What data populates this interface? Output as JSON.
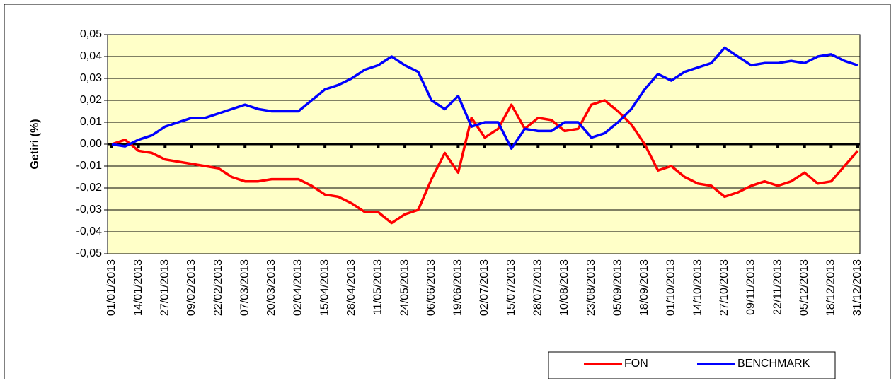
{
  "chart_data": {
    "type": "line",
    "ylabel": "Getiri (%)",
    "categories": [
      "01/01/2013",
      null,
      "14/01/2013",
      null,
      "27/01/2013",
      null,
      "09/02/2013",
      null,
      "22/02/2013",
      null,
      "07/03/2013",
      null,
      "20/03/2013",
      null,
      "02/04/2013",
      null,
      "15/04/2013",
      null,
      "28/04/2013",
      null,
      "11/05/2013",
      null,
      "24/05/2013",
      null,
      "06/06/2013",
      null,
      "19/06/2013",
      null,
      "02/07/2013",
      null,
      "15/07/2013",
      null,
      "28/07/2013",
      null,
      "10/08/2013",
      null,
      "23/08/2013",
      null,
      "05/09/2013",
      null,
      "18/09/2013",
      null,
      "01/10/2013",
      null,
      "14/10/2013",
      null,
      "27/10/2013",
      null,
      "09/11/2013",
      null,
      "22/11/2013",
      null,
      "05/12/2013",
      null,
      "18/12/2013",
      null,
      "31/12/2013"
    ],
    "series": [
      {
        "name": "FON",
        "color": "#ff0000",
        "values": [
          0.0,
          0.002,
          -0.003,
          -0.004,
          -0.007,
          -0.008,
          -0.009,
          -0.01,
          -0.011,
          -0.015,
          -0.017,
          -0.017,
          -0.016,
          -0.016,
          -0.016,
          -0.019,
          -0.023,
          -0.024,
          -0.027,
          -0.031,
          -0.031,
          -0.036,
          -0.032,
          -0.03,
          -0.016,
          -0.004,
          -0.013,
          0.012,
          0.003,
          0.007,
          0.018,
          0.007,
          0.012,
          0.011,
          0.006,
          0.007,
          0.018,
          0.02,
          0.015,
          0.009,
          0.0,
          -0.012,
          -0.01,
          -0.015,
          -0.018,
          -0.019,
          -0.024,
          -0.022,
          -0.019,
          -0.017,
          -0.019,
          -0.017,
          -0.013,
          -0.018,
          -0.017,
          -0.01,
          -0.003
        ]
      },
      {
        "name": "BENCHMARK",
        "color": "#0000ff",
        "values": [
          0.0,
          -0.001,
          0.002,
          0.004,
          0.008,
          0.01,
          0.012,
          0.012,
          0.014,
          0.016,
          0.018,
          0.016,
          0.015,
          0.015,
          0.015,
          0.02,
          0.025,
          0.027,
          0.03,
          0.034,
          0.036,
          0.04,
          0.036,
          0.033,
          0.02,
          0.016,
          0.022,
          0.008,
          0.01,
          0.01,
          -0.002,
          0.007,
          0.006,
          0.006,
          0.01,
          0.01,
          0.003,
          0.005,
          0.01,
          0.016,
          0.025,
          0.032,
          0.029,
          0.033,
          0.035,
          0.037,
          0.044,
          0.04,
          0.036,
          0.037,
          0.037,
          0.038,
          0.037,
          0.04,
          0.041,
          0.038,
          0.036
        ]
      }
    ],
    "ylim": [
      -0.05,
      0.05
    ],
    "yticks": [
      {
        "value": -0.05,
        "label": "-0,05"
      },
      {
        "value": -0.04,
        "label": "-0,04"
      },
      {
        "value": -0.03,
        "label": "-0,03"
      },
      {
        "value": -0.02,
        "label": "-0,02"
      },
      {
        "value": -0.01,
        "label": "-0,01"
      },
      {
        "value": 0,
        "label": "0,00"
      },
      {
        "value": 0.01,
        "label": "0,01"
      },
      {
        "value": 0.02,
        "label": "0,02"
      },
      {
        "value": 0.03,
        "label": "0,03"
      },
      {
        "value": 0.04,
        "label": "0,04"
      },
      {
        "value": 0.05,
        "label": "0,05"
      }
    ],
    "grid": true,
    "legend": "bottom-right",
    "plot_background": "#ffffc8"
  }
}
